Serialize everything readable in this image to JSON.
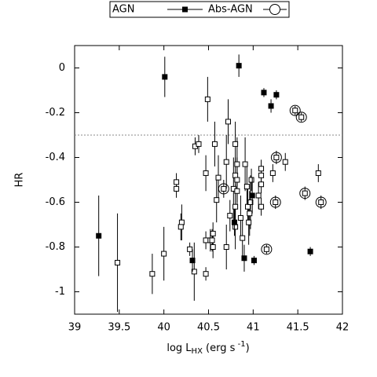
{
  "chart_data": {
    "type": "scatter",
    "xlabel_parts": [
      "log L",
      "HX",
      " (erg s",
      " -1",
      ")"
    ],
    "ylabel": "HR",
    "xlim": [
      39,
      42
    ],
    "ylim": [
      -1.1,
      0.1
    ],
    "xticks": [
      39,
      39.5,
      40,
      40.5,
      41,
      41.5,
      42
    ],
    "yticks": [
      0,
      -0.2,
      -0.4,
      -0.6,
      -0.8,
      -1
    ],
    "hline": -0.3,
    "series": [
      {
        "name": "AGN",
        "color": "#000000",
        "marker": "filled-square",
        "x": [
          39.27,
          40.01,
          40.84,
          41.12,
          41.26,
          41.2,
          40.32,
          40.79,
          40.9,
          41.01,
          40.99,
          41.64
        ],
        "values": [
          -0.75,
          -0.04,
          0.01,
          -0.11,
          -0.12,
          -0.17,
          -0.86,
          -0.69,
          -0.85,
          -0.86,
          -0.57,
          -0.82
        ],
        "errors": [
          0.18,
          0.09,
          0.05,
          0.02,
          0.02,
          0.03,
          0.05,
          0.06,
          0.06,
          0.02,
          0.08,
          0.02
        ]
      },
      {
        "name": "Abs-AGN",
        "color": "#000000",
        "marker": "circle",
        "x": [
          41.47,
          41.54,
          41.26,
          40.67,
          41.25,
          41.58,
          41.76,
          41.15
        ],
        "values": [
          -0.19,
          -0.22,
          -0.4,
          -0.54,
          -0.6,
          -0.56,
          -0.6,
          -0.81
        ],
        "errors": [
          0.02,
          0.02,
          0.03,
          0.04,
          0.03,
          0.03,
          0.03,
          0.02
        ]
      },
      {
        "color": "#000000",
        "marker": "open-square",
        "x": [
          39.48,
          39.87,
          40.0,
          40.14,
          40.14,
          40.2,
          40.19,
          40.29,
          40.34,
          40.35,
          40.39,
          40.49,
          40.47,
          40.47,
          40.52,
          40.47,
          40.54,
          40.55,
          40.55,
          40.57,
          40.59,
          40.61,
          40.7,
          40.7,
          40.72,
          40.74,
          40.78,
          40.8,
          40.8,
          40.82,
          40.82,
          40.82,
          40.8,
          40.8,
          40.86,
          40.88,
          40.91,
          40.93,
          40.94,
          40.96,
          40.95,
          40.97,
          40.98,
          41.09,
          41.09,
          41.09,
          41.09,
          41.22,
          41.36,
          41.73,
          41.06
        ],
        "values": [
          -0.87,
          -0.92,
          -0.83,
          -0.51,
          -0.54,
          -0.69,
          -0.71,
          -0.81,
          -0.91,
          -0.35,
          -0.34,
          -0.14,
          -0.47,
          -0.77,
          -0.77,
          -0.92,
          -0.77,
          -0.74,
          -0.8,
          -0.34,
          -0.59,
          -0.49,
          -0.8,
          -0.42,
          -0.24,
          -0.66,
          -0.54,
          -0.34,
          -0.48,
          -0.43,
          -0.5,
          -0.55,
          -0.62,
          -0.71,
          -0.67,
          -0.76,
          -0.43,
          -0.53,
          -0.62,
          -0.65,
          -0.69,
          -0.6,
          -0.5,
          -0.45,
          -0.48,
          -0.52,
          -0.62,
          -0.47,
          -0.42,
          -0.47,
          -0.57
        ],
        "errors": [
          0.22,
          0.09,
          0.12,
          0.04,
          0.04,
          0.08,
          0.06,
          0.03,
          0.13,
          0.04,
          0.04,
          0.1,
          0.08,
          0.04,
          0.05,
          0.03,
          0.05,
          0.05,
          0.05,
          0.1,
          0.1,
          0.1,
          0.1,
          0.12,
          0.1,
          0.07,
          0.14,
          0.1,
          0.08,
          0.12,
          0.1,
          0.08,
          0.1,
          0.1,
          0.1,
          0.08,
          0.12,
          0.1,
          0.08,
          0.1,
          0.1,
          0.12,
          0.05,
          0.04,
          0.03,
          0.04,
          0.04,
          0.04,
          0.04,
          0.04,
          0.06
        ]
      }
    ]
  }
}
